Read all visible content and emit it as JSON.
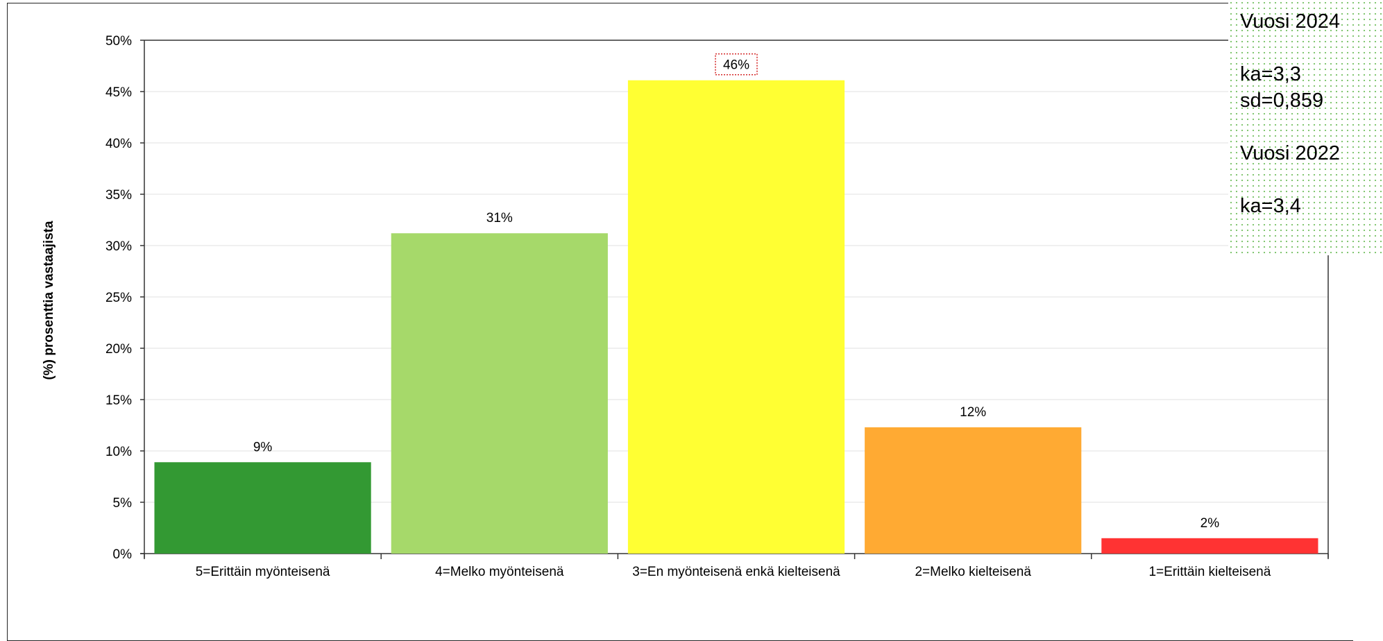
{
  "chart_data": {
    "type": "bar",
    "categories": [
      "5=Erittäin myönteisenä",
      "4=Melko myönteisenä",
      "3=En myönteisenä enkä kielteisenä",
      "2=Melko kielteisenä",
      "1=Erittäin kielteisenä"
    ],
    "values": [
      8.9,
      31.2,
      46.1,
      12.3,
      1.5
    ],
    "data_labels": [
      "9%",
      "31%",
      "46%",
      "12%",
      "2%"
    ],
    "colors": [
      "#339933",
      "#a6d96a",
      "#ffff33",
      "#ffaa33",
      "#ff3333"
    ],
    "ylabel": "(%) prosenttia vastaajista",
    "ylim": [
      0,
      50
    ],
    "yticks": [
      0,
      5,
      10,
      15,
      20,
      25,
      30,
      35,
      40,
      45,
      50
    ],
    "ytick_labels": [
      "0%",
      "5%",
      "10%",
      "15%",
      "20%",
      "25%",
      "30%",
      "35%",
      "40%",
      "45%",
      "50%"
    ],
    "grid": true
  },
  "stats": {
    "year_current": "Vuosi 2024",
    "mean_current": "ka=3,3",
    "sd_current": "sd=0,859",
    "year_previous": "Vuosi 2022",
    "mean_previous": "ka=3,4"
  }
}
